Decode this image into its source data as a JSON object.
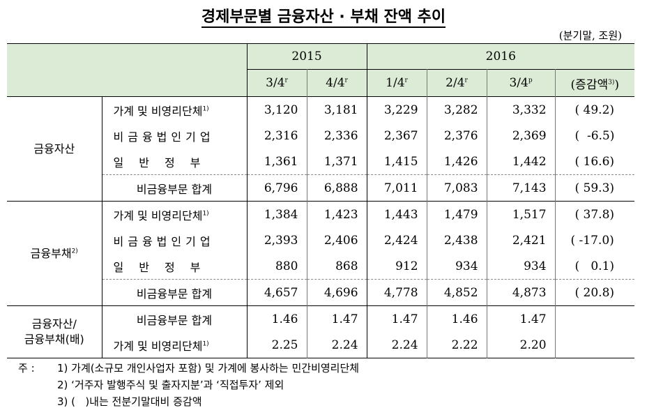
{
  "title": "경제부문별 금융자산 · 부채 잔액 추이",
  "unit": "(분기말, 조원)",
  "header": {
    "year2015": "2015",
    "year2016": "2016",
    "q": [
      "3/4",
      "4/4",
      "1/4",
      "2/4",
      "3/4"
    ],
    "qsup": [
      "r",
      "r",
      "r",
      "r",
      "p"
    ],
    "chg": "(증감액",
    "chg_sup": "3)",
    "chg_close": ")"
  },
  "assets": {
    "label": "금융자산",
    "rows": [
      {
        "label": "가계 및 비영리단체",
        "sup": "1)",
        "values": [
          "3,120",
          "3,181",
          "3,229",
          "3,282",
          "3,332"
        ],
        "chg": "( 49.2)"
      },
      {
        "label": "비금융법인기업",
        "sup": "",
        "values": [
          "2,316",
          "2,336",
          "2,367",
          "2,376",
          "2,369"
        ],
        "chg": "(  -6.5)"
      },
      {
        "label": "일반정부",
        "sup": "",
        "values": [
          "1,361",
          "1,371",
          "1,415",
          "1,426",
          "1,442"
        ],
        "chg": "( 16.6)"
      }
    ],
    "total": {
      "label": "비금융부문 합계",
      "values": [
        "6,796",
        "6,888",
        "7,011",
        "7,083",
        "7,143"
      ],
      "chg": "( 59.3)"
    }
  },
  "liabilities": {
    "label": "금융부채",
    "label_sup": "2)",
    "rows": [
      {
        "label": "가계 및 비영리단체",
        "sup": "1)",
        "values": [
          "1,384",
          "1,423",
          "1,443",
          "1,479",
          "1,517"
        ],
        "chg": "( 37.8)"
      },
      {
        "label": "비금융법인기업",
        "sup": "",
        "values": [
          "2,393",
          "2,406",
          "2,424",
          "2,438",
          "2,421"
        ],
        "chg": "( -17.0)"
      },
      {
        "label": "일반정부",
        "sup": "",
        "values": [
          "880",
          "868",
          "912",
          "934",
          "934"
        ],
        "chg": "(   0.1)"
      }
    ],
    "total": {
      "label": "비금융부문 합계",
      "values": [
        "4,657",
        "4,696",
        "4,778",
        "4,852",
        "4,873"
      ],
      "chg": "( 20.8)"
    }
  },
  "ratio": {
    "label_line1": "금융자산/",
    "label_line2": "금융부채(배)",
    "rows": [
      {
        "label": "비금융부문 합계",
        "sup": "",
        "values": [
          "1.46",
          "1.47",
          "1.47",
          "1.46",
          "1.47"
        ]
      },
      {
        "label": "가계 및 비영리단체",
        "sup": "1)",
        "values": [
          "2.25",
          "2.24",
          "2.24",
          "2.22",
          "2.20"
        ]
      }
    ]
  },
  "notes": {
    "head": "주 :",
    "items": [
      "1) 가계(소규모 개인사업자 포함) 및 가계에 봉사하는 민간비영리단체",
      "2) ‘거주자 발행주식 및 출자지분’과 ‘직접투자’ 제외",
      "3) (   )내는 전분기말대비 증감액"
    ]
  }
}
